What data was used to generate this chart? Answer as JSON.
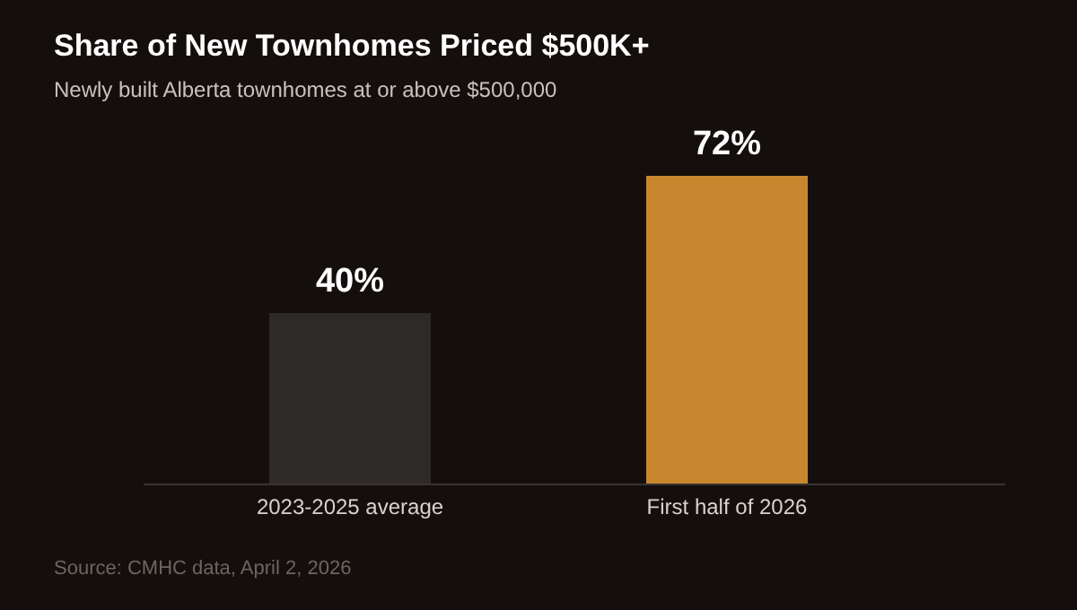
{
  "chart_data": {
    "type": "bar",
    "title": "Share of New Townhomes Priced $500K+",
    "subtitle": "Newly built Alberta townhomes at or above $500,000",
    "categories": [
      "2023-2025 average",
      "First half of 2026"
    ],
    "values": [
      40,
      72
    ],
    "colors": [
      "#2e2a27",
      "#c8862e"
    ],
    "value_labels": [
      "40%",
      "72%"
    ],
    "annotations": [
      "Source: CMHC data, April 2, 2026"
    ]
  }
}
